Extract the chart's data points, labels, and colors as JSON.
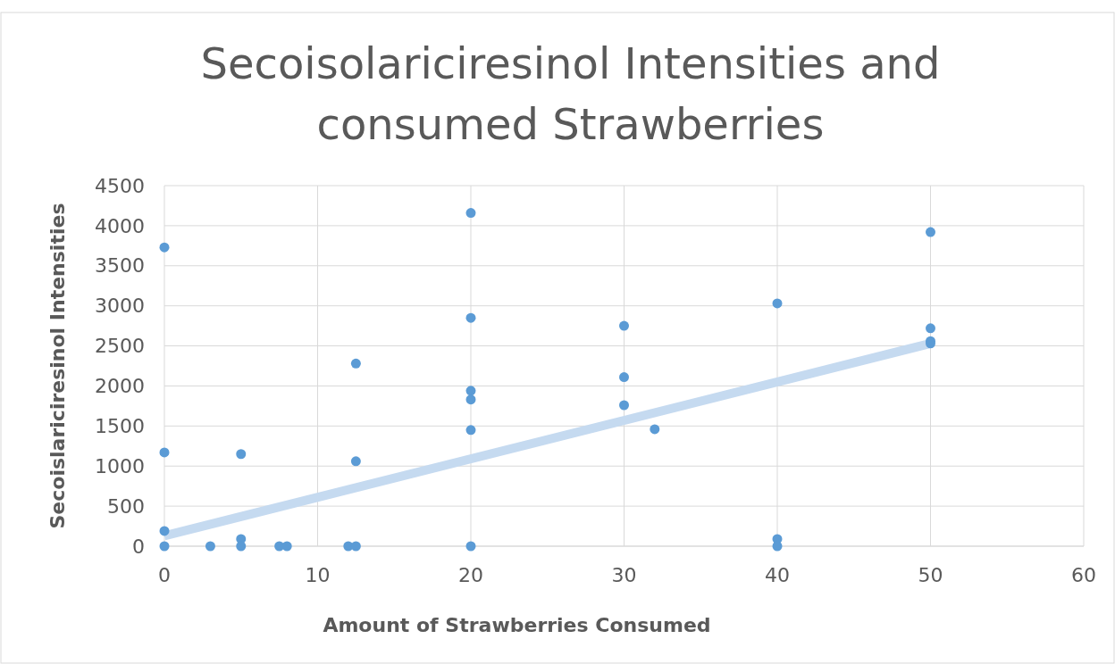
{
  "chart_data": {
    "type": "scatter",
    "title": "Secoisolariciresinol Intensities and consumed Strawberries",
    "xlabel": "Amount of Strawberries Consumed",
    "ylabel": "Secoislariciresinol Intensities",
    "xlim": [
      0,
      60
    ],
    "xticks": [
      0,
      10,
      20,
      30,
      40,
      50,
      60
    ],
    "ylim": [
      0,
      4500
    ],
    "yticks": [
      0,
      500,
      1000,
      1500,
      2000,
      2500,
      3000,
      3500,
      4000,
      4500
    ],
    "grid": true,
    "series": [
      {
        "marker": "circle",
        "color": "#5b9bd5",
        "x": [
          0,
          0,
          0,
          0,
          3,
          5,
          5,
          5,
          7.5,
          8,
          12,
          12.5,
          12.5,
          12.5,
          20,
          20,
          20,
          20,
          20,
          20,
          30,
          30,
          30,
          32,
          40,
          40,
          40,
          50,
          50,
          50,
          50
        ],
        "values": [
          3730,
          1170,
          190,
          0,
          0,
          1150,
          90,
          0,
          0,
          0,
          0,
          2280,
          1060,
          0,
          4160,
          2850,
          1940,
          1830,
          1450,
          0,
          2750,
          2110,
          1760,
          1460,
          3030,
          90,
          0,
          3920,
          2720,
          2560,
          2530
        ]
      },
      {
        "type": "line",
        "marker": "none",
        "color": "#c5daf0",
        "line_style": "solid",
        "x": [
          0,
          50
        ],
        "values": [
          130,
          2530
        ]
      }
    ]
  }
}
